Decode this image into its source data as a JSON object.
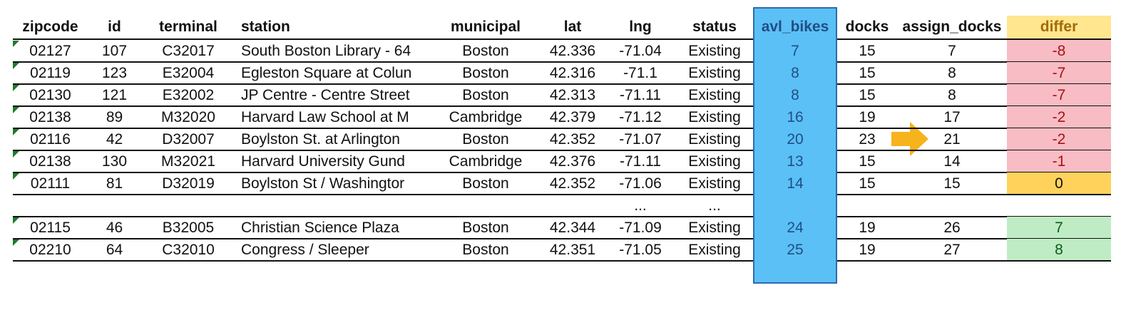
{
  "columns": [
    "zipcode",
    "id",
    "terminal",
    "station",
    "municipal",
    "lat",
    "lng",
    "status",
    "avl_bikes",
    "docks",
    "assign_docks",
    "differ"
  ],
  "rows_top": [
    {
      "zipcode": "02127",
      "id": "107",
      "terminal": "C32017",
      "station": "South Boston Library - 64",
      "municipal": "Boston",
      "lat": "42.336",
      "lng": "-71.04",
      "status": "Existing",
      "avl_bikes": "7",
      "docks": "15",
      "assign_docks": "7",
      "differ": "-8"
    },
    {
      "zipcode": "02119",
      "id": "123",
      "terminal": "E32004",
      "station": "Egleston Square at Colun",
      "municipal": "Boston",
      "lat": "42.316",
      "lng": "-71.1",
      "status": "Existing",
      "avl_bikes": "8",
      "docks": "15",
      "assign_docks": "8",
      "differ": "-7"
    },
    {
      "zipcode": "02130",
      "id": "121",
      "terminal": "E32002",
      "station": "JP Centre - Centre Street",
      "municipal": "Boston",
      "lat": "42.313",
      "lng": "-71.11",
      "status": "Existing",
      "avl_bikes": "8",
      "docks": "15",
      "assign_docks": "8",
      "differ": "-7"
    },
    {
      "zipcode": "02138",
      "id": "89",
      "terminal": "M32020",
      "station": "Harvard Law School at M",
      "municipal": "Cambridge",
      "lat": "42.379",
      "lng": "-71.12",
      "status": "Existing",
      "avl_bikes": "16",
      "docks": "19",
      "assign_docks": "17",
      "differ": "-2"
    },
    {
      "zipcode": "02116",
      "id": "42",
      "terminal": "D32007",
      "station": "Boylston St. at Arlington",
      "municipal": "Boston",
      "lat": "42.352",
      "lng": "-71.07",
      "status": "Existing",
      "avl_bikes": "20",
      "docks": "23",
      "assign_docks": "21",
      "differ": "-2"
    },
    {
      "zipcode": "02138",
      "id": "130",
      "terminal": "M32021",
      "station": "Harvard University Gund",
      "municipal": "Cambridge",
      "lat": "42.376",
      "lng": "-71.11",
      "status": "Existing",
      "avl_bikes": "13",
      "docks": "15",
      "assign_docks": "14",
      "differ": "-1"
    },
    {
      "zipcode": "02111",
      "id": "81",
      "terminal": "D32019",
      "station": "Boylston St / Washingtor",
      "municipal": "Boston",
      "lat": "42.352",
      "lng": "-71.06",
      "status": "Existing",
      "avl_bikes": "14",
      "docks": "15",
      "assign_docks": "15",
      "differ": "0"
    }
  ],
  "ellipsis": {
    "lng": "...",
    "status": "..."
  },
  "rows_bottom": [
    {
      "zipcode": "02115",
      "id": "46",
      "terminal": "B32005",
      "station": "Christian Science Plaza",
      "municipal": "Boston",
      "lat": "42.344",
      "lng": "-71.09",
      "status": "Existing",
      "avl_bikes": "24",
      "docks": "19",
      "assign_docks": "26",
      "differ": "7"
    },
    {
      "zipcode": "02210",
      "id": "64",
      "terminal": "C32010",
      "station": "Congress / Sleeper",
      "municipal": "Boston",
      "lat": "42.351",
      "lng": "-71.05",
      "status": "Existing",
      "avl_bikes": "25",
      "docks": "19",
      "assign_docks": "27",
      "differ": "8"
    }
  ],
  "colors": {
    "avl_highlight": "#5bc0f5",
    "differ_header": "#ffe68f",
    "negative": "#f8bcc4",
    "zero": "#ffd35b",
    "positive": "#bfecc4",
    "arrow": "#f7b31b"
  },
  "icons": {
    "arrow": "right-arrow-icon"
  }
}
